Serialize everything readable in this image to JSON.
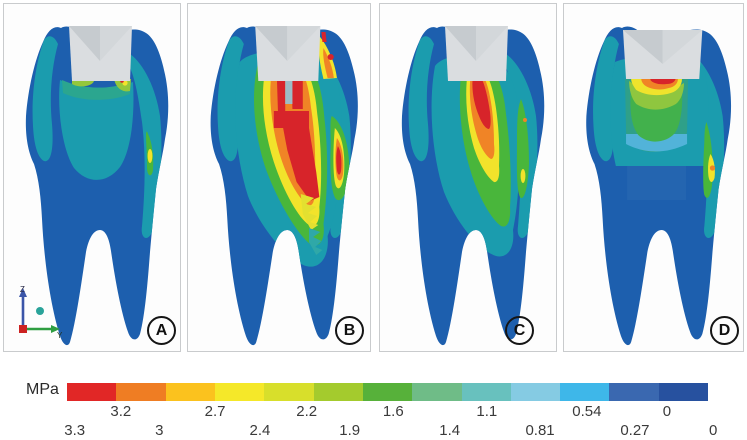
{
  "panels": [
    {
      "label": "A"
    },
    {
      "label": "B"
    },
    {
      "label": "C"
    },
    {
      "label": "D"
    }
  ],
  "axis_triad": {
    "vertical_axis_label": "Z",
    "horizontal_axis_label": "Y"
  },
  "colorbar": {
    "unit": "MPa",
    "segment_colors": [
      "#e12726",
      "#ef7d23",
      "#fbc21e",
      "#f5e829",
      "#d8df2b",
      "#a4cb2d",
      "#57b13a",
      "#6fbc87",
      "#68c1be",
      "#85cbe3",
      "#3eb7e9",
      "#3a68b0",
      "#27519f"
    ],
    "labels_top": [
      {
        "text": "3.2",
        "pos_pct": 8.4
      },
      {
        "text": "2.7",
        "pos_pct": 23.1
      },
      {
        "text": "2.2",
        "pos_pct": 37.4
      },
      {
        "text": "1.6",
        "pos_pct": 50.9
      },
      {
        "text": "1.1",
        "pos_pct": 65.5
      },
      {
        "text": "0.54",
        "pos_pct": 81.1
      },
      {
        "text": "0",
        "pos_pct": 93.6
      }
    ],
    "labels_bottom": [
      {
        "text": "3.3",
        "pos_pct": 1.2
      },
      {
        "text": "3",
        "pos_pct": 14.4
      },
      {
        "text": "2.4",
        "pos_pct": 30.1
      },
      {
        "text": "1.9",
        "pos_pct": 44.1
      },
      {
        "text": "1.4",
        "pos_pct": 59.7
      },
      {
        "text": "0.81",
        "pos_pct": 73.8
      },
      {
        "text": "0.27",
        "pos_pct": 88.6
      },
      {
        "text": "0",
        "pos_pct": 100.8
      }
    ],
    "palette_note_colors": {
      "tooth_body_blue": "#1d5fae",
      "stress_teal": "#1b9cae",
      "stress_green": "#49b63b",
      "stress_yellow": "#f2e32b",
      "stress_orange": "#f08426",
      "stress_red": "#d7242a",
      "restoration_gray": "#dadde0"
    }
  }
}
